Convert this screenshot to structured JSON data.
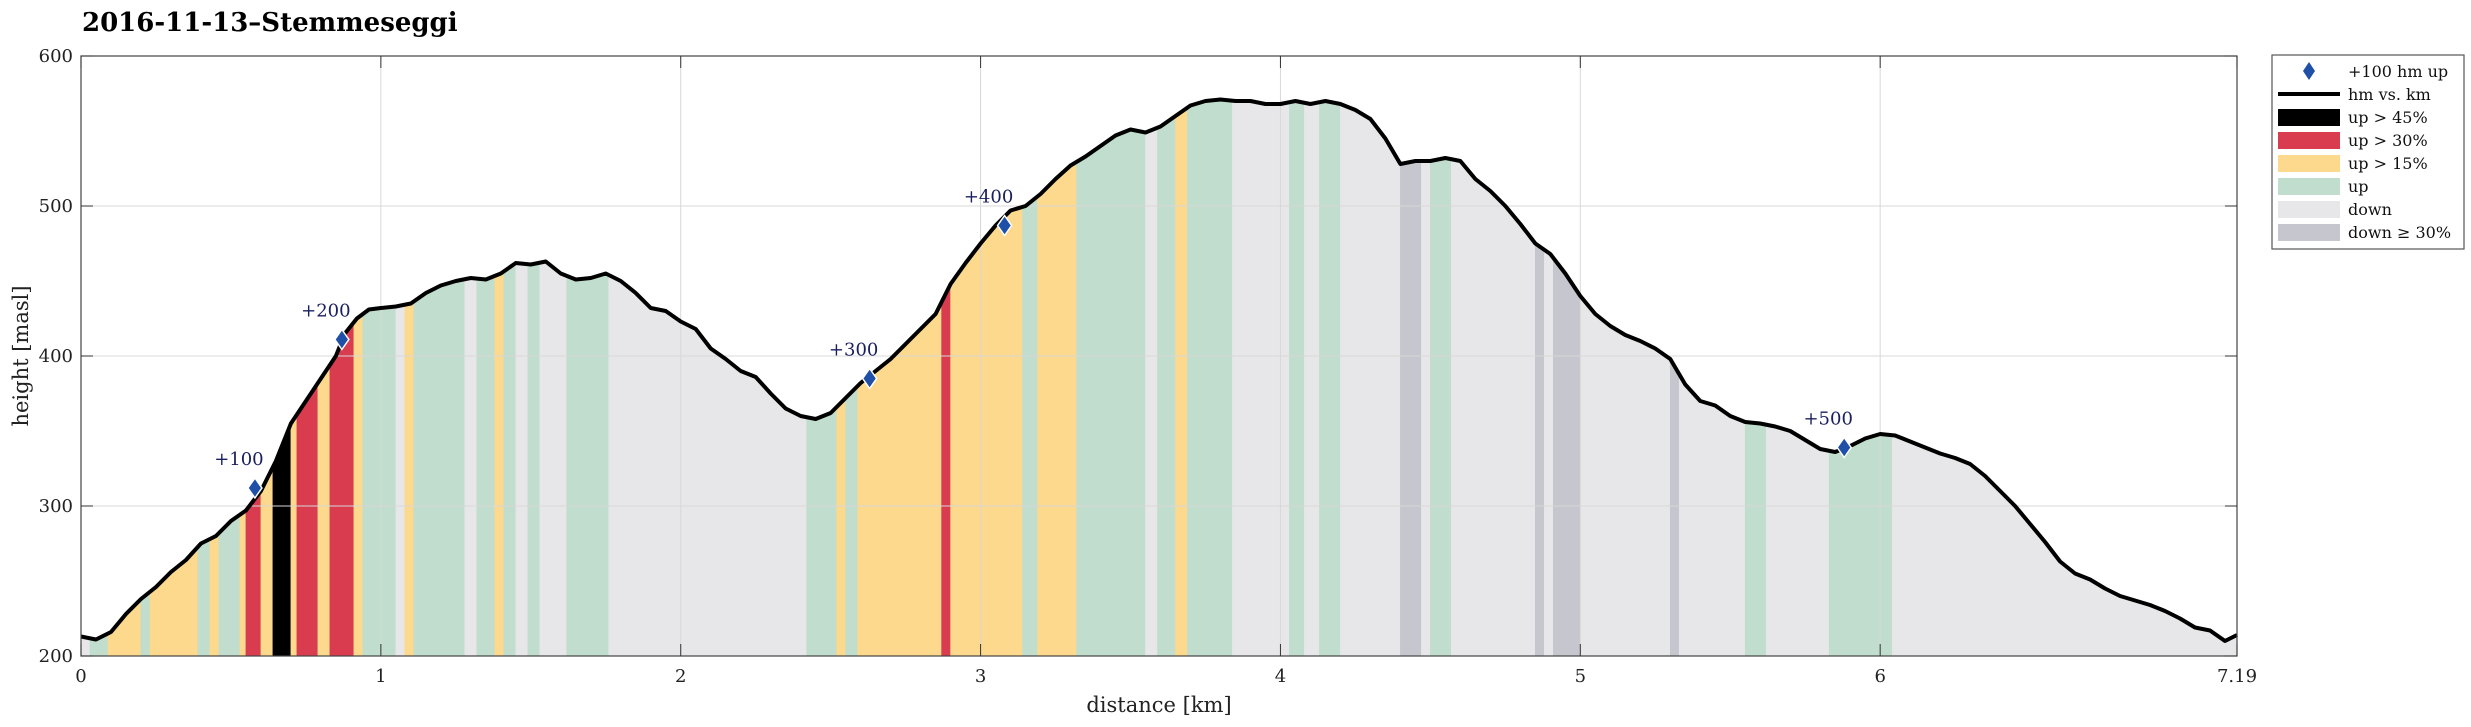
{
  "chart_data": {
    "type": "area",
    "title": "2016-11-13–Stemmeseggi",
    "xlabel": "distance [km]",
    "ylabel": "height [masl]",
    "xlim": [
      0,
      7.19
    ],
    "ylim": [
      200,
      600
    ],
    "x_ticks": [
      "0",
      "1",
      "2",
      "3",
      "4",
      "5",
      "6",
      "7.19"
    ],
    "y_ticks": [
      "200",
      "300",
      "400",
      "500",
      "600"
    ],
    "grid": true,
    "legend_position": "outside-top-right",
    "legend": [
      {
        "key": "marker",
        "label": "+100 hm up"
      },
      {
        "key": "line",
        "label": "hm vs. km"
      },
      {
        "key": "up45",
        "label": "up > 45%"
      },
      {
        "key": "up30",
        "label": "up > 30%"
      },
      {
        "key": "up15",
        "label": "up > 15%"
      },
      {
        "key": "up",
        "label": "up"
      },
      {
        "key": "down",
        "label": "down"
      },
      {
        "key": "down30",
        "label": "down ≥ 30%"
      }
    ],
    "colors": {
      "up45": "#000000",
      "up30": "#d93b4f",
      "up15": "#fcd98c",
      "up": "#c0ddcd",
      "down": "#e7e7ea",
      "down30": "#c5c6ce",
      "line": "#000000",
      "marker": "#1f4fa6",
      "grid": "#d8d8d8"
    },
    "profile": [
      [
        0.0,
        213
      ],
      [
        0.05,
        211
      ],
      [
        0.1,
        216
      ],
      [
        0.15,
        228
      ],
      [
        0.2,
        238
      ],
      [
        0.25,
        246
      ],
      [
        0.3,
        256
      ],
      [
        0.35,
        264
      ],
      [
        0.4,
        275
      ],
      [
        0.45,
        280
      ],
      [
        0.5,
        290
      ],
      [
        0.55,
        297
      ],
      [
        0.6,
        310
      ],
      [
        0.65,
        330
      ],
      [
        0.7,
        355
      ],
      [
        0.75,
        370
      ],
      [
        0.8,
        385
      ],
      [
        0.85,
        400
      ],
      [
        0.88,
        415
      ],
      [
        0.92,
        425
      ],
      [
        0.96,
        431
      ],
      [
        1.0,
        432
      ],
      [
        1.05,
        433
      ],
      [
        1.1,
        435
      ],
      [
        1.15,
        442
      ],
      [
        1.2,
        447
      ],
      [
        1.25,
        450
      ],
      [
        1.3,
        452
      ],
      [
        1.35,
        451
      ],
      [
        1.4,
        455
      ],
      [
        1.45,
        462
      ],
      [
        1.5,
        461
      ],
      [
        1.55,
        463
      ],
      [
        1.6,
        455
      ],
      [
        1.65,
        451
      ],
      [
        1.7,
        452
      ],
      [
        1.75,
        455
      ],
      [
        1.8,
        450
      ],
      [
        1.85,
        442
      ],
      [
        1.9,
        432
      ],
      [
        1.95,
        430
      ],
      [
        2.0,
        423
      ],
      [
        2.05,
        418
      ],
      [
        2.1,
        405
      ],
      [
        2.15,
        398
      ],
      [
        2.2,
        390
      ],
      [
        2.25,
        386
      ],
      [
        2.3,
        375
      ],
      [
        2.35,
        365
      ],
      [
        2.4,
        360
      ],
      [
        2.45,
        358
      ],
      [
        2.5,
        362
      ],
      [
        2.55,
        372
      ],
      [
        2.6,
        382
      ],
      [
        2.65,
        390
      ],
      [
        2.7,
        398
      ],
      [
        2.75,
        408
      ],
      [
        2.8,
        418
      ],
      [
        2.85,
        428
      ],
      [
        2.9,
        448
      ],
      [
        2.95,
        462
      ],
      [
        3.0,
        475
      ],
      [
        3.05,
        487
      ],
      [
        3.1,
        497
      ],
      [
        3.15,
        500
      ],
      [
        3.2,
        508
      ],
      [
        3.25,
        518
      ],
      [
        3.3,
        527
      ],
      [
        3.35,
        533
      ],
      [
        3.4,
        540
      ],
      [
        3.45,
        547
      ],
      [
        3.5,
        551
      ],
      [
        3.55,
        549
      ],
      [
        3.6,
        553
      ],
      [
        3.65,
        560
      ],
      [
        3.7,
        567
      ],
      [
        3.75,
        570
      ],
      [
        3.8,
        571
      ],
      [
        3.85,
        570
      ],
      [
        3.9,
        570
      ],
      [
        3.95,
        568
      ],
      [
        4.0,
        568
      ],
      [
        4.05,
        570
      ],
      [
        4.1,
        568
      ],
      [
        4.15,
        570
      ],
      [
        4.2,
        568
      ],
      [
        4.25,
        564
      ],
      [
        4.3,
        558
      ],
      [
        4.35,
        545
      ],
      [
        4.4,
        528
      ],
      [
        4.45,
        530
      ],
      [
        4.5,
        530
      ],
      [
        4.55,
        532
      ],
      [
        4.6,
        530
      ],
      [
        4.65,
        518
      ],
      [
        4.7,
        510
      ],
      [
        4.75,
        500
      ],
      [
        4.8,
        488
      ],
      [
        4.85,
        475
      ],
      [
        4.9,
        468
      ],
      [
        4.95,
        455
      ],
      [
        5.0,
        440
      ],
      [
        5.05,
        428
      ],
      [
        5.1,
        420
      ],
      [
        5.15,
        414
      ],
      [
        5.2,
        410
      ],
      [
        5.25,
        405
      ],
      [
        5.3,
        398
      ],
      [
        5.35,
        381
      ],
      [
        5.4,
        370
      ],
      [
        5.45,
        367
      ],
      [
        5.5,
        360
      ],
      [
        5.55,
        356
      ],
      [
        5.6,
        355
      ],
      [
        5.65,
        353
      ],
      [
        5.7,
        350
      ],
      [
        5.75,
        344
      ],
      [
        5.8,
        338
      ],
      [
        5.85,
        336
      ],
      [
        5.9,
        340
      ],
      [
        5.95,
        345
      ],
      [
        6.0,
        348
      ],
      [
        6.05,
        347
      ],
      [
        6.1,
        343
      ],
      [
        6.15,
        339
      ],
      [
        6.2,
        335
      ],
      [
        6.25,
        332
      ],
      [
        6.3,
        328
      ],
      [
        6.35,
        320
      ],
      [
        6.4,
        310
      ],
      [
        6.45,
        300
      ],
      [
        6.5,
        288
      ],
      [
        6.55,
        276
      ],
      [
        6.6,
        263
      ],
      [
        6.65,
        255
      ],
      [
        6.7,
        251
      ],
      [
        6.75,
        245
      ],
      [
        6.8,
        240
      ],
      [
        6.85,
        237
      ],
      [
        6.9,
        234
      ],
      [
        6.95,
        230
      ],
      [
        7.0,
        225
      ],
      [
        7.05,
        219
      ],
      [
        7.1,
        217
      ],
      [
        7.15,
        210
      ],
      [
        7.19,
        214
      ]
    ],
    "segments": [
      [
        0.0,
        0.03,
        "down"
      ],
      [
        0.03,
        0.09,
        "up"
      ],
      [
        0.09,
        0.2,
        "up15"
      ],
      [
        0.2,
        0.23,
        "up"
      ],
      [
        0.23,
        0.39,
        "up15"
      ],
      [
        0.39,
        0.43,
        "up"
      ],
      [
        0.43,
        0.46,
        "up15"
      ],
      [
        0.46,
        0.53,
        "up"
      ],
      [
        0.53,
        0.55,
        "up15"
      ],
      [
        0.55,
        0.6,
        "up30"
      ],
      [
        0.6,
        0.64,
        "up15"
      ],
      [
        0.64,
        0.7,
        "up45"
      ],
      [
        0.7,
        0.72,
        "up15"
      ],
      [
        0.72,
        0.79,
        "up30"
      ],
      [
        0.79,
        0.83,
        "up15"
      ],
      [
        0.83,
        0.91,
        "up30"
      ],
      [
        0.91,
        0.94,
        "up15"
      ],
      [
        0.94,
        1.05,
        "up"
      ],
      [
        1.05,
        1.08,
        "down"
      ],
      [
        1.08,
        1.11,
        "up15"
      ],
      [
        1.11,
        1.28,
        "up"
      ],
      [
        1.28,
        1.32,
        "down"
      ],
      [
        1.32,
        1.38,
        "up"
      ],
      [
        1.38,
        1.41,
        "up15"
      ],
      [
        1.41,
        1.45,
        "up"
      ],
      [
        1.45,
        1.49,
        "down"
      ],
      [
        1.49,
        1.53,
        "up"
      ],
      [
        1.53,
        1.62,
        "down"
      ],
      [
        1.62,
        1.76,
        "up"
      ],
      [
        1.76,
        2.42,
        "down"
      ],
      [
        2.42,
        2.52,
        "up"
      ],
      [
        2.52,
        2.55,
        "up15"
      ],
      [
        2.55,
        2.59,
        "up"
      ],
      [
        2.59,
        2.87,
        "up15"
      ],
      [
        2.87,
        2.9,
        "up30"
      ],
      [
        2.9,
        3.14,
        "up15"
      ],
      [
        3.14,
        3.19,
        "up"
      ],
      [
        3.19,
        3.32,
        "up15"
      ],
      [
        3.32,
        3.55,
        "up"
      ],
      [
        3.55,
        3.59,
        "down"
      ],
      [
        3.59,
        3.65,
        "up"
      ],
      [
        3.65,
        3.69,
        "up15"
      ],
      [
        3.69,
        3.84,
        "up"
      ],
      [
        3.84,
        4.03,
        "down"
      ],
      [
        4.03,
        4.08,
        "up"
      ],
      [
        4.08,
        4.13,
        "down"
      ],
      [
        4.13,
        4.2,
        "up"
      ],
      [
        4.2,
        4.4,
        "down"
      ],
      [
        4.4,
        4.47,
        "down30"
      ],
      [
        4.47,
        4.5,
        "down"
      ],
      [
        4.5,
        4.57,
        "up"
      ],
      [
        4.57,
        4.85,
        "down"
      ],
      [
        4.85,
        4.88,
        "down30"
      ],
      [
        4.88,
        4.91,
        "down"
      ],
      [
        4.91,
        5.0,
        "down30"
      ],
      [
        5.0,
        5.3,
        "down"
      ],
      [
        5.3,
        5.33,
        "down30"
      ],
      [
        5.33,
        5.55,
        "down"
      ],
      [
        5.55,
        5.62,
        "up"
      ],
      [
        5.62,
        5.83,
        "down"
      ],
      [
        5.83,
        6.04,
        "up"
      ],
      [
        6.04,
        7.19,
        "down"
      ]
    ],
    "markers": [
      {
        "x": 0.58,
        "y": 312,
        "label": "+100"
      },
      {
        "x": 0.87,
        "y": 411,
        "label": "+200"
      },
      {
        "x": 2.63,
        "y": 385,
        "label": "+300"
      },
      {
        "x": 3.08,
        "y": 487,
        "label": "+400"
      },
      {
        "x": 5.88,
        "y": 339,
        "label": "+500"
      }
    ]
  }
}
